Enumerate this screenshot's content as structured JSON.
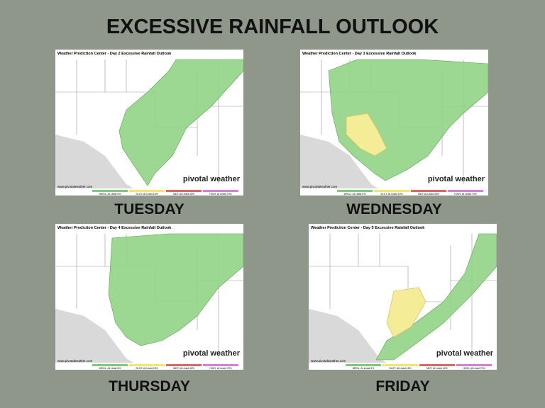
{
  "title": "EXCESSIVE RAINFALL OUTLOOK",
  "panels": [
    {
      "day": "TUESDAY",
      "map": {
        "header": "Weather Prediction Center - Day 2 Excessive Rainfall Outlook",
        "brand": "pivotal weather",
        "site": "www.pivotalweather.com",
        "legend": [
          "MRGL: At Least 5%",
          "SLGT: At Least 15%",
          "MDT: At Least 40%",
          "HIGH: At Least 70%"
        ]
      }
    },
    {
      "day": "WEDNESDAY",
      "map": {
        "header": "Weather Prediction Center - Day 3 Excessive Rainfall Outlook",
        "brand": "pivotal weather",
        "site": "www.pivotalweather.com",
        "legend": [
          "MRGL: At Least 5%",
          "SLGT: At Least 15%",
          "MDT: At Least 40%",
          "HIGH: At Least 70%"
        ]
      }
    },
    {
      "day": "THURSDAY",
      "map": {
        "header": "Weather Prediction Center - Day 4 Excessive Rainfall Outlook",
        "brand": "pivotal weather",
        "site": "www.pivotalweather.com",
        "legend": [
          "MRGL: At Least 5%",
          "SLGT: At Least 15%",
          "MDT: At Least 40%",
          "HIGH: At Least 70%"
        ]
      }
    },
    {
      "day": "FRIDAY",
      "map": {
        "header": "Weather Prediction Center - Day 5 Excessive Rainfall Outlook",
        "brand": "pivotal weather",
        "site": "www.pivotalweather.com",
        "legend": [
          "MRGL: At Least 5%",
          "SLGT: At Least 15%",
          "MDT: At Least 40%",
          "HIGH: At Least 70%"
        ]
      }
    }
  ]
}
